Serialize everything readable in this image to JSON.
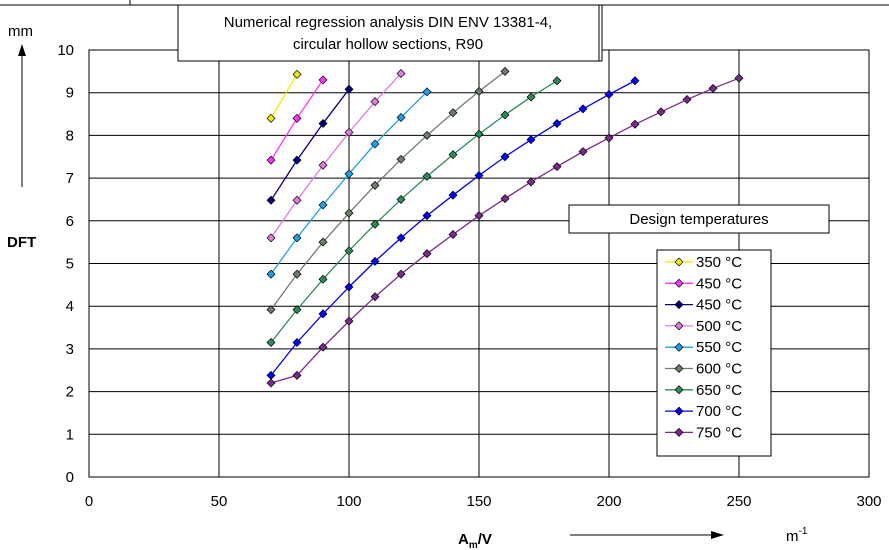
{
  "chart_data": {
    "type": "line",
    "title": [
      "Numerical regression analysis DIN ENV 13381-4,",
      "circular hollow sections, R90"
    ],
    "xlabel": "A",
    "xlabel_sub": "m",
    "xlabel_tail": "/V",
    "xunit": "m",
    "xunit_sup": "-1",
    "ylabel": "DFT",
    "yunit": "mm",
    "xlim": [
      0,
      300
    ],
    "ylim": [
      0,
      10
    ],
    "xticks": [
      "0",
      "50",
      "100",
      "150",
      "200",
      "250",
      "300"
    ],
    "yticks": [
      "0",
      "1",
      "2",
      "3",
      "4",
      "5",
      "6",
      "7",
      "8",
      "9",
      "10"
    ],
    "xtick_values": [
      0,
      50,
      100,
      150,
      200,
      250,
      300
    ],
    "ytick_values": [
      0,
      1,
      2,
      3,
      4,
      5,
      6,
      7,
      8,
      9,
      10
    ],
    "grid": true,
    "legend_title": "Design temperatures",
    "legend_position": "right",
    "series": [
      {
        "name": "350 °C",
        "color": "#f0ec00",
        "x": [
          70,
          80
        ],
        "y": [
          8.4,
          9.43
        ]
      },
      {
        "name": "450 °C",
        "color": "#ff33ff",
        "x": [
          70,
          80,
          90
        ],
        "y": [
          7.42,
          8.4,
          9.3
        ]
      },
      {
        "name": "450 °C",
        "color": "#00007f",
        "x": [
          70,
          80,
          90,
          100
        ],
        "y": [
          6.48,
          7.42,
          8.28,
          9.08
        ]
      },
      {
        "name": "500 °C",
        "color": "#e07ce0",
        "x": [
          70,
          80,
          90,
          100,
          110,
          120
        ],
        "y": [
          5.6,
          6.48,
          7.3,
          8.07,
          8.79,
          9.45
        ]
      },
      {
        "name": "550 °C",
        "color": "#1ea0e6",
        "x": [
          70,
          80,
          90,
          100,
          110,
          120,
          130
        ],
        "y": [
          4.75,
          5.6,
          6.37,
          7.1,
          7.8,
          8.42,
          9.02
        ]
      },
      {
        "name": "600 °C",
        "color": "#6d7e6d",
        "x": [
          70,
          80,
          90,
          100,
          110,
          120,
          130,
          140,
          150,
          160
        ],
        "y": [
          3.92,
          4.75,
          5.5,
          6.18,
          6.83,
          7.44,
          8.0,
          8.53,
          9.03,
          9.5
        ]
      },
      {
        "name": "650 °C",
        "color": "#2e8b57",
        "x": [
          70,
          80,
          90,
          100,
          110,
          120,
          130,
          140,
          150,
          160,
          170,
          180
        ],
        "y": [
          3.15,
          3.92,
          4.63,
          5.3,
          5.92,
          6.5,
          7.04,
          7.55,
          8.03,
          8.48,
          8.9,
          9.28
        ]
      },
      {
        "name": "700 °C",
        "color": "#0000ff",
        "x": [
          70,
          80,
          90,
          100,
          110,
          120,
          130,
          140,
          150,
          160,
          170,
          180,
          190,
          200,
          210
        ],
        "y": [
          2.38,
          3.15,
          3.82,
          4.45,
          5.05,
          5.6,
          6.12,
          6.6,
          7.06,
          7.5,
          7.9,
          8.28,
          8.62,
          8.96,
          9.28
        ]
      },
      {
        "name": "750 °C",
        "color": "#7b2a8e",
        "x": [
          70,
          80,
          90,
          100,
          110,
          120,
          130,
          140,
          150,
          160,
          170,
          180,
          190,
          200,
          210,
          220,
          230,
          240,
          250
        ],
        "y": [
          2.2,
          2.38,
          3.04,
          3.65,
          4.22,
          4.75,
          5.23,
          5.68,
          6.12,
          6.52,
          6.91,
          7.27,
          7.62,
          7.94,
          8.26,
          8.55,
          8.84,
          9.1,
          9.34
        ]
      }
    ]
  }
}
